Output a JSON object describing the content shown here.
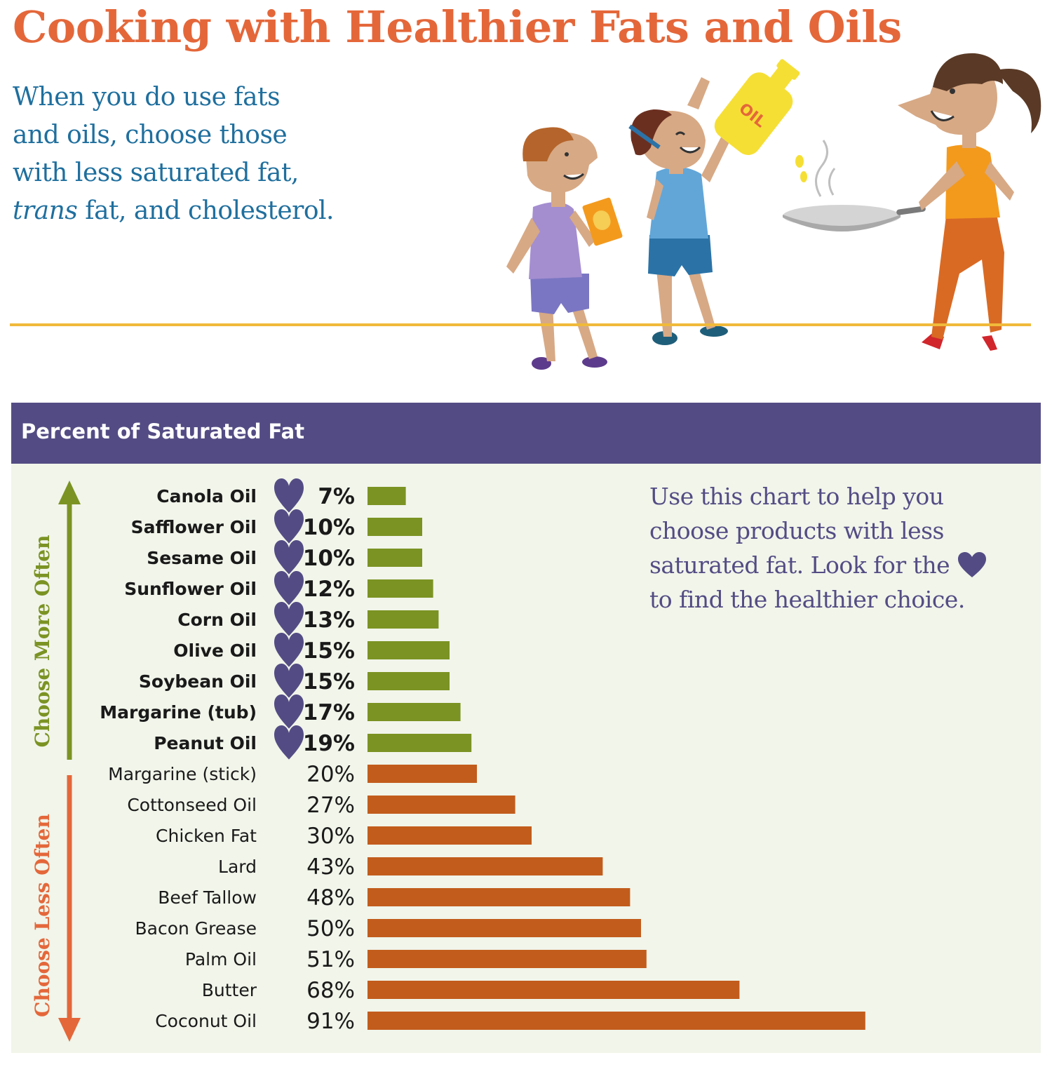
{
  "title": "Cooking with Healthier Fats and Oils",
  "intro": {
    "line1": "When you do use fats",
    "line2": "and oils, choose those",
    "line3": "with less saturated fat,",
    "line4_italic": "trans",
    "line4_rest": " fat, and cholesterol."
  },
  "illustration": {
    "bottle_label": "OIL"
  },
  "chart_header": "Percent of Saturated Fat",
  "side_note": {
    "text_before_heart": "Use this chart to help you choose products with less saturated fat. Look for the",
    "text_after_heart": "to find the healthier choice."
  },
  "colors": {
    "title": "#e4673a",
    "intro": "#1f6f9e",
    "header_bg": "#534c84",
    "panel_bg": "#f1f5ea",
    "more_often": "#7b9323",
    "less_often": "#c25c1c",
    "heart": "#534c84",
    "less_arrow": "#e4673a"
  },
  "chart_data": {
    "type": "bar",
    "orientation": "horizontal",
    "title": "Percent of Saturated Fat",
    "unit": "%",
    "categories": [
      "Canola Oil",
      "Safflower Oil",
      "Sesame Oil",
      "Sunflower Oil",
      "Corn Oil",
      "Olive Oil",
      "Soybean Oil",
      "Margarine (tub)",
      "Peanut Oil",
      "Margarine (stick)",
      "Cottonseed Oil",
      "Chicken Fat",
      "Lard",
      "Beef Tallow",
      "Bacon Grease",
      "Palm Oil",
      "Butter",
      "Coconut Oil"
    ],
    "values": [
      7,
      10,
      10,
      12,
      13,
      15,
      15,
      17,
      19,
      20,
      27,
      30,
      43,
      48,
      50,
      51,
      68,
      91
    ],
    "labels": [
      "7%",
      "10%",
      "10%",
      "12%",
      "13%",
      "15%",
      "15%",
      "17%",
      "19%",
      "20%",
      "27%",
      "30%",
      "43%",
      "48%",
      "50%",
      "51%",
      "68%",
      "91%"
    ],
    "groups": [
      {
        "name": "Choose More Often",
        "count": 9,
        "heart": true
      },
      {
        "name": "Choose Less Often",
        "count": 9,
        "heart": false
      }
    ],
    "grid": false
  }
}
